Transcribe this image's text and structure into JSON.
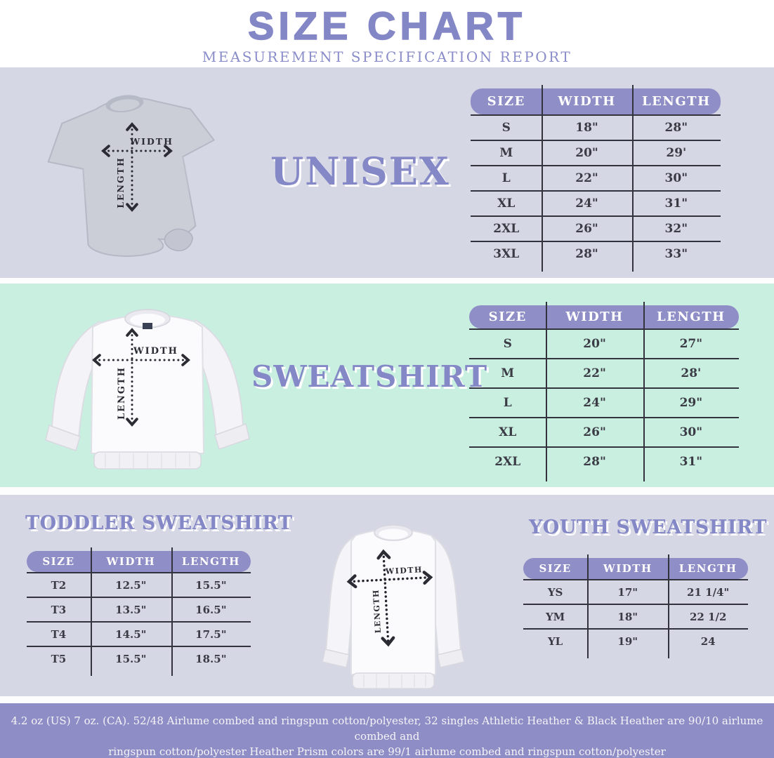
{
  "header": {
    "title": "SIZE CHART",
    "subtitle": "MEASUREMENT SPECIFICATION REPORT"
  },
  "measurement_labels": {
    "width": "WIDTH",
    "length": "LENGTH"
  },
  "sections": {
    "unisex": {
      "title": "UNISEX",
      "table": {
        "headers": [
          "SIZE",
          "WIDTH",
          "LENGTH"
        ],
        "rows": [
          [
            "S",
            "18\"",
            "28\""
          ],
          [
            "M",
            "20\"",
            "29'"
          ],
          [
            "L",
            "22\"",
            "30\""
          ],
          [
            "XL",
            "24\"",
            "31\""
          ],
          [
            "2XL",
            "26\"",
            "32\""
          ],
          [
            "3XL",
            "28\"",
            "33\""
          ]
        ]
      }
    },
    "sweatshirt": {
      "title": "SWEATSHIRT",
      "table": {
        "headers": [
          "SIZE",
          "WIDTH",
          "LENGTH"
        ],
        "rows": [
          [
            "S",
            "20\"",
            "27\""
          ],
          [
            "M",
            "22\"",
            "28'"
          ],
          [
            "L",
            "24\"",
            "29\""
          ],
          [
            "XL",
            "26\"",
            "30\""
          ],
          [
            "2XL",
            "28\"",
            "31\""
          ]
        ]
      }
    },
    "toddler": {
      "title": "TODDLER SWEATSHIRT",
      "table": {
        "headers": [
          "SIZE",
          "WIDTH",
          "LENGTH"
        ],
        "rows": [
          [
            "T2",
            "12.5\"",
            "15.5\""
          ],
          [
            "T3",
            "13.5\"",
            "16.5\""
          ],
          [
            "T4",
            "14.5\"",
            "17.5\""
          ],
          [
            "T5",
            "15.5\"",
            "18.5\""
          ]
        ]
      }
    },
    "youth": {
      "title": "YOUTH SWEATSHIRT",
      "table": {
        "headers": [
          "SIZE",
          "WIDTH",
          "LENGTH"
        ],
        "rows": [
          [
            "YS",
            "17\"",
            "21 1/4\""
          ],
          [
            "YM",
            "18\"",
            "22 1/2"
          ],
          [
            "YL",
            "19\"",
            "24"
          ]
        ]
      }
    }
  },
  "footer": {
    "line1": "4.2 oz (US) 7 oz. (CA). 52/48 Airlume combed and ringspun cotton/polyester, 32 singles Athletic Heather & Black Heather are 90/10 airlume combed and",
    "line2": "ringspun cotton/polyester Heather Prism colors are 99/1 airlume combed and ringspun cotton/polyester"
  },
  "colors": {
    "lavender_band": "#d6d7e4",
    "mint_band": "#c9efe1",
    "footer_purple": "#8f8dc5",
    "pill_purple": "#8f8ec6",
    "title_purple": "#8487c6",
    "table_text": "#3b3b45",
    "line_dark": "#33333d"
  }
}
